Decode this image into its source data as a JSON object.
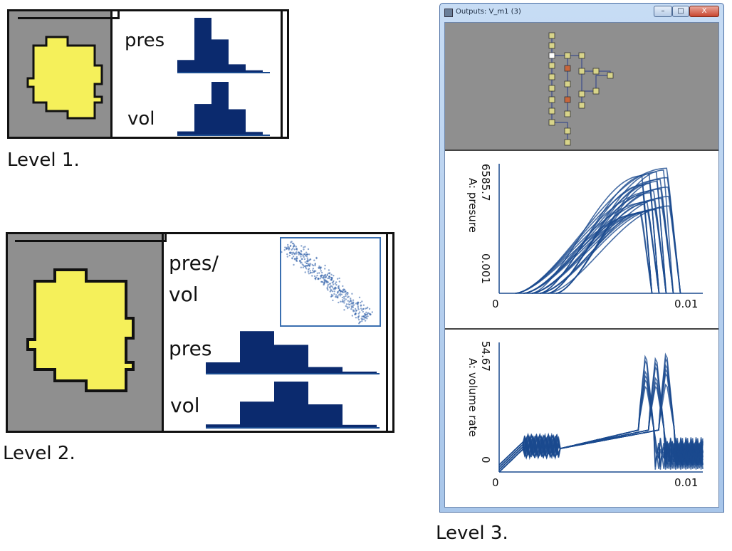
{
  "level1": {
    "caption": "Level 1.",
    "labels": [
      "pres",
      "vol"
    ],
    "pres_hist": [
      0.22,
      1.0,
      0.6,
      0.14,
      0.03
    ],
    "vol_hist": [
      0.06,
      0.58,
      1.0,
      0.48,
      0.05
    ]
  },
  "level2": {
    "caption": "Level 2.",
    "labels": {
      "scatter_line1": "pres/",
      "scatter_line2": "vol",
      "pres": "pres",
      "vol": "vol"
    },
    "pres_hist": [
      0.25,
      0.98,
      0.66,
      0.14,
      0.03
    ],
    "vol_hist": [
      0.06,
      0.56,
      1.0,
      0.5,
      0.05
    ]
  },
  "level3": {
    "caption": "Level 3.",
    "window_title": "Outputs: V_m1 (3)",
    "buttons": {
      "minimize": "–",
      "maximize": "□",
      "close": "X"
    },
    "chart_data": [
      {
        "type": "line",
        "ylabel": "A: presure",
        "ylim_labels": [
          "0.001",
          "6585.7"
        ],
        "ylim": [
          0.001,
          6585.7
        ],
        "xlim": [
          0,
          0.01
        ],
        "xtick_labels": [
          "0",
          "0.01"
        ]
      },
      {
        "type": "line",
        "ylabel": "A: volume rate",
        "ylim_labels": [
          "0",
          "54.67"
        ],
        "ylim": [
          0,
          54.67
        ],
        "xlim": [
          0,
          0.01
        ],
        "xtick_labels": [
          "0",
          "0.01"
        ]
      }
    ]
  },
  "colors": {
    "bar": "#0b2a6e",
    "line": "#1a4a8e",
    "node": "#f5f05a",
    "panel_gray": "#8f8f8f"
  }
}
